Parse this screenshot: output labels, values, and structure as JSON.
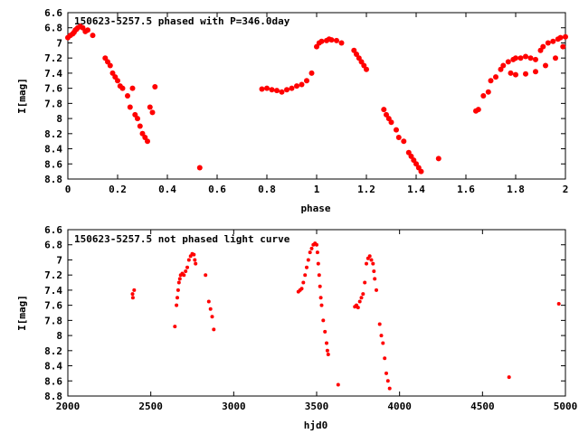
{
  "colors": {
    "points": "#ff0000",
    "axes": "#000000",
    "background": "#ffffff"
  },
  "chart_data": [
    {
      "type": "scatter",
      "title": "150623-5257.5 phased with P=346.0day",
      "xlabel": "phase",
      "ylabel": "I[mag]",
      "xlim": [
        0,
        2
      ],
      "ylim": [
        6.6,
        8.8
      ],
      "y_inverted": true,
      "grid": false,
      "xticks": [
        "0",
        "0.2",
        "0.4",
        "0.6",
        "0.8",
        "1",
        "1.2",
        "1.4",
        "1.6",
        "1.8",
        "2"
      ],
      "yticks": [
        "6.6",
        "6.8",
        "7",
        "7.2",
        "7.4",
        "7.6",
        "7.8",
        "8",
        "8.2",
        "8.4",
        "8.6",
        "8.8"
      ],
      "marker": "filled-circle",
      "series": [
        {
          "x": [
            0.0,
            0.01,
            0.02,
            0.025,
            0.03,
            0.035,
            0.04,
            0.05,
            0.06,
            0.07,
            0.08,
            0.1,
            0.15,
            0.16,
            0.17,
            0.18,
            0.19,
            0.2,
            0.21,
            0.22,
            0.24,
            0.25,
            0.26,
            0.27,
            0.28,
            0.29,
            0.3,
            0.31,
            0.32,
            0.33,
            0.34,
            0.35,
            0.53,
            0.78,
            0.8,
            0.82,
            0.84,
            0.86,
            0.88,
            0.9,
            0.92,
            0.94,
            0.96,
            0.98,
            1.0,
            1.01,
            1.02,
            1.04,
            1.05,
            1.06,
            1.08,
            1.1,
            1.15,
            1.16,
            1.17,
            1.18,
            1.19,
            1.2,
            1.27,
            1.28,
            1.29,
            1.3,
            1.32,
            1.33,
            1.35,
            1.37,
            1.38,
            1.39,
            1.4,
            1.41,
            1.42,
            1.49,
            1.64,
            1.65,
            1.67,
            1.69,
            1.7,
            1.72,
            1.74,
            1.75,
            1.77,
            1.79,
            1.8,
            1.82,
            1.84,
            1.86,
            1.88,
            1.9,
            1.91,
            1.93,
            1.95,
            1.97,
            1.98,
            2.0,
            1.78,
            1.8,
            1.84,
            1.88,
            1.92,
            1.96,
            1.99
          ],
          "y": [
            6.93,
            6.9,
            6.88,
            6.86,
            6.83,
            6.82,
            6.8,
            6.78,
            6.8,
            6.85,
            6.83,
            6.9,
            7.2,
            7.25,
            7.3,
            7.4,
            7.45,
            7.5,
            7.57,
            7.6,
            7.7,
            7.85,
            7.6,
            7.95,
            8.0,
            8.1,
            8.2,
            8.25,
            8.3,
            7.85,
            7.92,
            7.58,
            8.65,
            7.61,
            7.6,
            7.62,
            7.63,
            7.65,
            7.62,
            7.6,
            7.57,
            7.55,
            7.5,
            7.4,
            7.05,
            7.0,
            6.98,
            6.97,
            6.95,
            6.96,
            6.97,
            7.0,
            7.1,
            7.15,
            7.2,
            7.25,
            7.3,
            7.35,
            7.88,
            7.95,
            8.0,
            8.05,
            8.15,
            8.25,
            8.3,
            8.45,
            8.5,
            8.55,
            8.6,
            8.65,
            8.7,
            8.53,
            7.9,
            7.88,
            7.7,
            7.65,
            7.5,
            7.45,
            7.35,
            7.3,
            7.25,
            7.22,
            7.2,
            7.2,
            7.18,
            7.2,
            7.22,
            7.1,
            7.05,
            7.0,
            6.98,
            6.95,
            6.93,
            6.92,
            7.4,
            7.42,
            7.41,
            7.38,
            7.3,
            7.2,
            7.05
          ]
        }
      ]
    },
    {
      "type": "scatter",
      "title": "150623-5257.5 not phased light curve",
      "xlabel": "hjd0",
      "ylabel": "I[mag]",
      "xlim": [
        2000,
        5000
      ],
      "ylim": [
        6.6,
        8.8
      ],
      "y_inverted": true,
      "grid": false,
      "xticks": [
        "2000",
        "2500",
        "3000",
        "3500",
        "4000",
        "4500",
        "5000"
      ],
      "yticks": [
        "6.6",
        "6.8",
        "7",
        "7.2",
        "7.4",
        "7.6",
        "7.8",
        "8",
        "8.2",
        "8.4",
        "8.6",
        "8.8"
      ],
      "marker": "small-circle",
      "series": [
        {
          "x": [
            2390,
            2392,
            2400,
            2645,
            2655,
            2660,
            2665,
            2670,
            2675,
            2680,
            2690,
            2700,
            2710,
            2720,
            2730,
            2740,
            2750,
            2760,
            2765,
            2770,
            2830,
            2850,
            2860,
            2870,
            2880,
            3390,
            3400,
            3410,
            3420,
            3430,
            3440,
            3450,
            3460,
            3470,
            3480,
            3490,
            3500,
            3505,
            3510,
            3515,
            3520,
            3525,
            3530,
            3540,
            3550,
            3560,
            3565,
            3570,
            3630,
            3730,
            3740,
            3750,
            3760,
            3770,
            3780,
            3790,
            3800,
            3810,
            3820,
            3830,
            3840,
            3845,
            3850,
            3860,
            3880,
            3890,
            3900,
            3910,
            3920,
            3930,
            3940,
            4660,
            4960
          ],
          "y": [
            7.45,
            7.5,
            7.4,
            7.88,
            7.6,
            7.5,
            7.4,
            7.3,
            7.25,
            7.2,
            7.18,
            7.2,
            7.15,
            7.1,
            7.0,
            6.95,
            6.92,
            6.93,
            7.0,
            7.05,
            7.2,
            7.55,
            7.65,
            7.75,
            7.92,
            7.42,
            7.4,
            7.38,
            7.3,
            7.2,
            7.1,
            7.0,
            6.9,
            6.85,
            6.8,
            6.78,
            6.8,
            6.9,
            7.05,
            7.2,
            7.35,
            7.5,
            7.6,
            7.8,
            7.95,
            8.1,
            8.2,
            8.25,
            8.65,
            7.62,
            7.6,
            7.63,
            7.55,
            7.5,
            7.45,
            7.3,
            7.05,
            6.98,
            6.95,
            7.0,
            7.05,
            7.15,
            7.25,
            7.4,
            7.85,
            8.0,
            8.1,
            8.3,
            8.5,
            8.6,
            8.7,
            8.55,
            7.58
          ]
        }
      ]
    }
  ]
}
